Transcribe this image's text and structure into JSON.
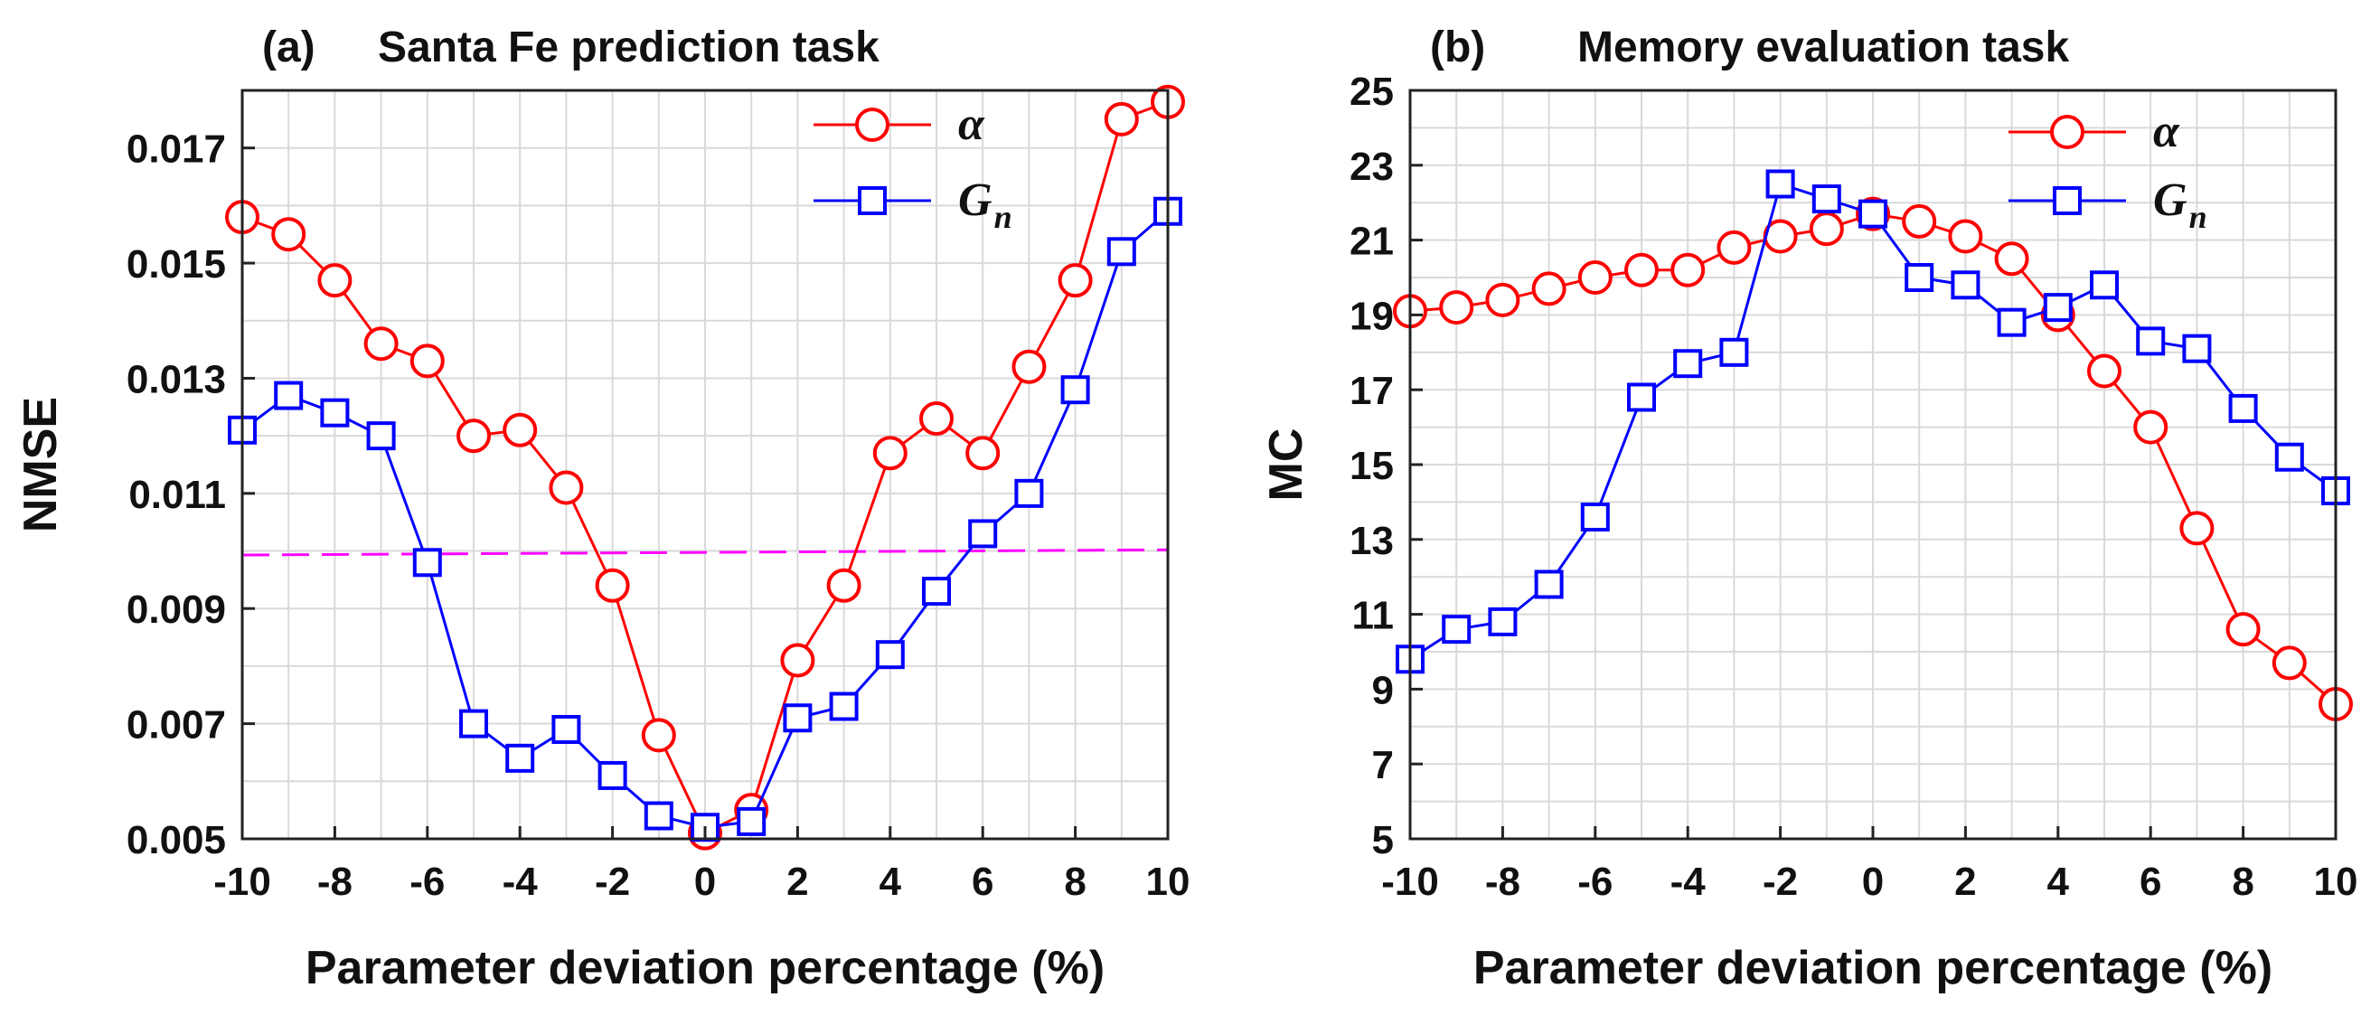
{
  "chart_data": [
    {
      "type": "line",
      "panel_label": "(a)",
      "title": "Santa Fe prediction task",
      "xlabel": "Parameter deviation percentage (%)",
      "ylabel": "NMSE",
      "xlim": [
        -10,
        10
      ],
      "ylim": [
        0.005,
        0.018
      ],
      "grid": true,
      "x": [
        -10,
        -9,
        -8,
        -7,
        -6,
        -5,
        -4,
        -3,
        -2,
        -1,
        0,
        1,
        2,
        3,
        4,
        5,
        6,
        7,
        8,
        9,
        10
      ],
      "x_ticks": [
        -10,
        -8,
        -6,
        -4,
        -2,
        0,
        2,
        4,
        6,
        8,
        10
      ],
      "x_tick_labels": [
        "-10",
        "-8",
        "-6",
        "-4",
        "-2",
        "0",
        "2",
        "4",
        "6",
        "8",
        "10"
      ],
      "y_ticks": [
        0.005,
        0.007,
        0.009,
        0.011,
        0.013,
        0.015,
        0.017
      ],
      "y_tick_labels": [
        "0.005",
        "0.007",
        "0.009",
        "0.011",
        "0.013",
        "0.015",
        "0.017"
      ],
      "legend_location": "top-right",
      "series": [
        {
          "name": "α",
          "color": "#ff0000",
          "marker": "circle",
          "values": [
            0.0158,
            0.0155,
            0.0147,
            0.0136,
            0.0133,
            0.012,
            0.0121,
            0.0111,
            0.0094,
            0.0068,
            0.0051,
            0.0055,
            0.0081,
            0.0094,
            0.0117,
            0.0123,
            0.0117,
            0.0132,
            0.0147,
            0.0175,
            0.0178
          ]
        },
        {
          "name": "G",
          "name_subscript": "n",
          "color": "#0000ff",
          "marker": "square",
          "values": [
            0.0121,
            0.0127,
            0.0124,
            0.012,
            0.0098,
            0.007,
            0.0064,
            0.0069,
            0.0061,
            0.0054,
            0.0052,
            0.0053,
            0.0071,
            0.0073,
            0.0082,
            0.0093,
            0.0103,
            0.011,
            0.0128,
            0.0152,
            0.0159
          ]
        }
      ],
      "reference_line": {
        "style": "dashed",
        "color": "#ff00ff",
        "x": [
          -10,
          10
        ],
        "y": [
          0.00993,
          0.01002
        ]
      }
    },
    {
      "type": "line",
      "panel_label": "(b)",
      "title": "Memory evaluation task",
      "xlabel": "Parameter deviation percentage (%)",
      "ylabel": "MC",
      "xlim": [
        -10,
        10
      ],
      "ylim": [
        5,
        25
      ],
      "grid": true,
      "x": [
        -10,
        -9,
        -8,
        -7,
        -6,
        -5,
        -4,
        -3,
        -2,
        -1,
        0,
        1,
        2,
        3,
        4,
        5,
        6,
        7,
        8,
        9,
        10
      ],
      "x_ticks": [
        -10,
        -8,
        -6,
        -4,
        -2,
        0,
        2,
        4,
        6,
        8,
        10
      ],
      "x_tick_labels": [
        "-10",
        "-8",
        "-6",
        "-4",
        "-2",
        "0",
        "2",
        "4",
        "6",
        "8",
        "10"
      ],
      "y_ticks": [
        5,
        7,
        9,
        11,
        13,
        15,
        17,
        19,
        21,
        23,
        25
      ],
      "y_tick_labels": [
        "5",
        "7",
        "9",
        "11",
        "13",
        "15",
        "17",
        "19",
        "21",
        "23",
        "25"
      ],
      "legend_location": "top-right",
      "series": [
        {
          "name": "α",
          "color": "#ff0000",
          "marker": "circle",
          "values": [
            19.1,
            19.2,
            19.4,
            19.7,
            20.0,
            20.2,
            20.2,
            20.8,
            21.1,
            21.3,
            21.7,
            21.5,
            21.1,
            20.5,
            19.0,
            17.5,
            16.0,
            13.3,
            10.6,
            9.7,
            8.6
          ]
        },
        {
          "name": "G",
          "name_subscript": "n",
          "color": "#0000ff",
          "marker": "square",
          "values": [
            9.8,
            10.6,
            10.8,
            11.8,
            13.6,
            16.8,
            17.7,
            18.0,
            22.5,
            22.1,
            21.7,
            20.0,
            19.8,
            18.8,
            19.2,
            19.8,
            18.3,
            18.1,
            16.5,
            15.2,
            14.3
          ]
        }
      ]
    }
  ]
}
